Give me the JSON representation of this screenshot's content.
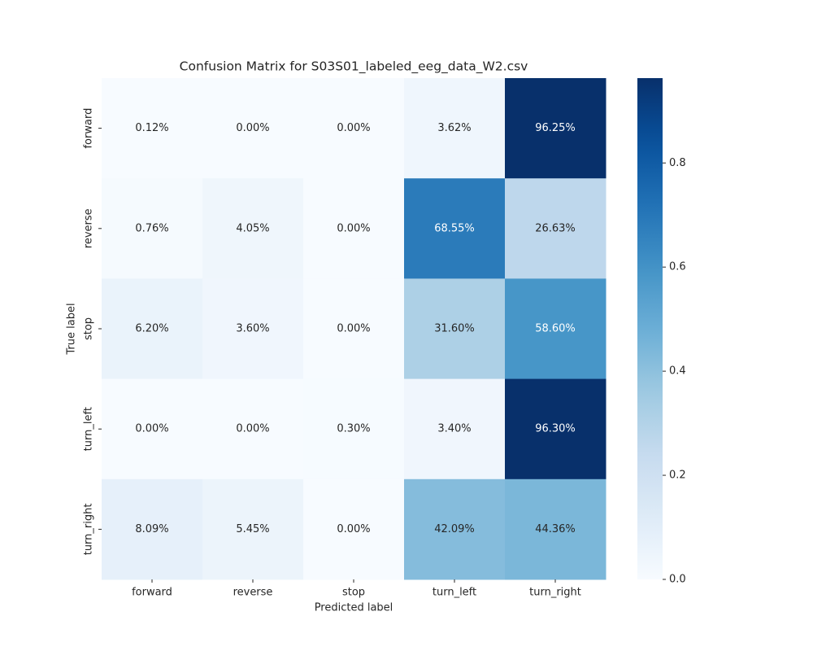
{
  "chart_data": {
    "type": "heatmap",
    "title": "Confusion Matrix for S03S01_labeled_eeg_data_W2.csv",
    "xlabel": "Predicted label",
    "ylabel": "True label",
    "x_categories": [
      "forward",
      "reverse",
      "stop",
      "turn_left",
      "turn_right"
    ],
    "y_categories": [
      "forward",
      "reverse",
      "stop",
      "turn_left",
      "turn_right"
    ],
    "values": [
      [
        0.0012,
        0,
        0,
        0.0362,
        0.9625
      ],
      [
        0.0076,
        0.0405,
        0,
        0.6855,
        0.2663
      ],
      [
        0.062,
        0.036,
        0,
        0.316,
        0.586
      ],
      [
        0,
        0,
        0.003,
        0.034,
        0.963
      ],
      [
        0.0809,
        0.0545,
        0,
        0.4209,
        0.4436
      ]
    ],
    "value_labels": [
      [
        "0.12%",
        "0.00%",
        "0.00%",
        "3.62%",
        "96.25%"
      ],
      [
        "0.76%",
        "4.05%",
        "0.00%",
        "68.55%",
        "26.63%"
      ],
      [
        "6.20%",
        "3.60%",
        "0.00%",
        "31.60%",
        "58.60%"
      ],
      [
        "0.00%",
        "0.00%",
        "0.30%",
        "3.40%",
        "96.30%"
      ],
      [
        "8.09%",
        "5.45%",
        "0.00%",
        "42.09%",
        "44.36%"
      ]
    ],
    "colormap": "Blues",
    "zlim": [
      0,
      0.963
    ],
    "zticks": [
      {
        "value": 0,
        "label": "0.0"
      },
      0.2,
      0.4,
      0.6,
      0.8
    ]
  }
}
